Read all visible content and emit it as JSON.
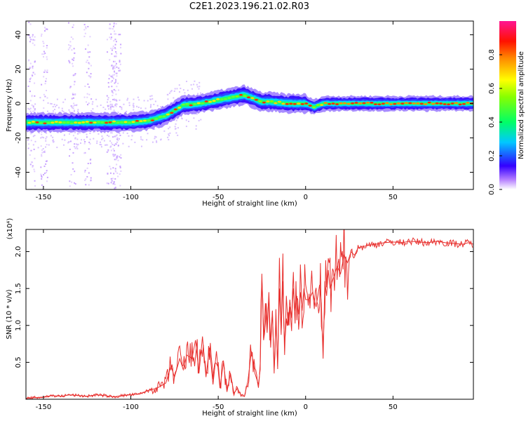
{
  "title": "C2E1.2023.196.21.02.R03",
  "chart_data": [
    {
      "type": "heatmap",
      "xlabel": "Height of straight line (km)",
      "ylabel": "Frequency (Hz)",
      "xlim": [
        -160,
        96
      ],
      "ylim": [
        -50,
        48
      ],
      "xticks": [
        -150,
        -100,
        -50,
        0,
        50
      ],
      "yticks": [
        -40,
        -20,
        0,
        20,
        40
      ],
      "colorbar": {
        "label": "Normalized spectral amplitude",
        "range": [
          0,
          1
        ],
        "ticks": [
          "0.0",
          "0.2",
          "0.4",
          "0.6",
          "0.8"
        ],
        "tick_values": [
          0.0,
          0.2,
          0.4,
          0.6,
          0.8
        ]
      },
      "ridge": {
        "x": [
          -160,
          -150,
          -140,
          -130,
          -120,
          -110,
          -100,
          -90,
          -80,
          -70,
          -60,
          -50,
          -40,
          -35,
          -30,
          -25,
          -20,
          -10,
          0,
          5,
          10,
          20,
          30,
          50,
          70,
          96
        ],
        "y": [
          -11,
          -11,
          -11,
          -11,
          -11,
          -11,
          -11,
          -10,
          -7,
          -1,
          0,
          2,
          4,
          5,
          3,
          1,
          1,
          0,
          0,
          -2,
          0,
          0,
          0,
          0,
          0,
          0
        ]
      },
      "background_noise_columns": [
        -157,
        -150,
        -134,
        -125,
        -112,
        -110,
        -108
      ]
    },
    {
      "type": "line",
      "xlabel": "Height of straight line (km)",
      "ylabel": "SNR (10 * v/v)",
      "y_multiplier": "(x10⁴)",
      "xlim": [
        -160,
        96
      ],
      "ylim": [
        0,
        2.3
      ],
      "xticks": [
        -150,
        -100,
        -50,
        0,
        50
      ],
      "yticks": [
        0.5,
        1.0,
        1.5,
        2.0
      ],
      "ytick_labels": [
        "0.5",
        "1.0",
        "1.5",
        "2.0"
      ],
      "color": "#e8302e",
      "series": [
        {
          "x": [
            -160,
            -155,
            -150,
            -145,
            -140,
            -135,
            -130,
            -125,
            -120,
            -115,
            -110,
            -105,
            -100,
            -95,
            -90,
            -85,
            -80,
            -77,
            -75,
            -72,
            -70,
            -68,
            -65,
            -63,
            -61,
            -59,
            -57,
            -55,
            -53,
            -51,
            -49,
            -47,
            -45,
            -43,
            -41,
            -39,
            -37,
            -35,
            -33,
            -31,
            -29,
            -27,
            -26,
            -25,
            -24,
            -23,
            -22,
            -21,
            -20,
            -19,
            -18,
            -17,
            -16,
            -15,
            -14,
            -13,
            -12,
            -11,
            -10,
            -9,
            -8,
            -7,
            -6,
            -5,
            -4,
            -3,
            -2,
            -1,
            0,
            2,
            4,
            6,
            8,
            9,
            10,
            11,
            12,
            13,
            14,
            16,
            18,
            20,
            22,
            24,
            26,
            28,
            30,
            35,
            40,
            45,
            50,
            55,
            60,
            65,
            70,
            75,
            80,
            85,
            90,
            93,
            96
          ],
          "y": [
            0.01,
            0.02,
            0.03,
            0.05,
            0.04,
            0.06,
            0.05,
            0.04,
            0.06,
            0.05,
            0.03,
            0.05,
            0.06,
            0.07,
            0.12,
            0.15,
            0.22,
            0.45,
            0.3,
            0.55,
            0.4,
            0.6,
            0.55,
            0.8,
            0.35,
            0.85,
            0.3,
            0.7,
            0.2,
            0.65,
            0.15,
            0.5,
            0.1,
            0.35,
            0.08,
            0.15,
            0.05,
            0.04,
            0.25,
            0.65,
            0.35,
            0.2,
            0.4,
            1.7,
            0.8,
            1.3,
            0.9,
            1.45,
            0.7,
            1.2,
            0.35,
            1.1,
            0.45,
            1.5,
            0.9,
            1.6,
            0.6,
            1.4,
            1.0,
            1.35,
            1.1,
            1.5,
            1.2,
            1.4,
            1.15,
            1.45,
            1.2,
            1.5,
            1.35,
            1.35,
            1.45,
            1.25,
            1.55,
            1.3,
            0.55,
            1.6,
            1.4,
            1.75,
            1.5,
            1.65,
            1.8,
            1.7,
            1.95,
            1.85,
            2.0,
            1.95,
            2.05,
            2.08,
            2.1,
            2.12,
            2.13,
            2.12,
            2.14,
            2.13,
            2.12,
            2.14,
            2.12,
            2.11,
            2.1,
            2.12,
            2.1
          ]
        }
      ]
    }
  ]
}
